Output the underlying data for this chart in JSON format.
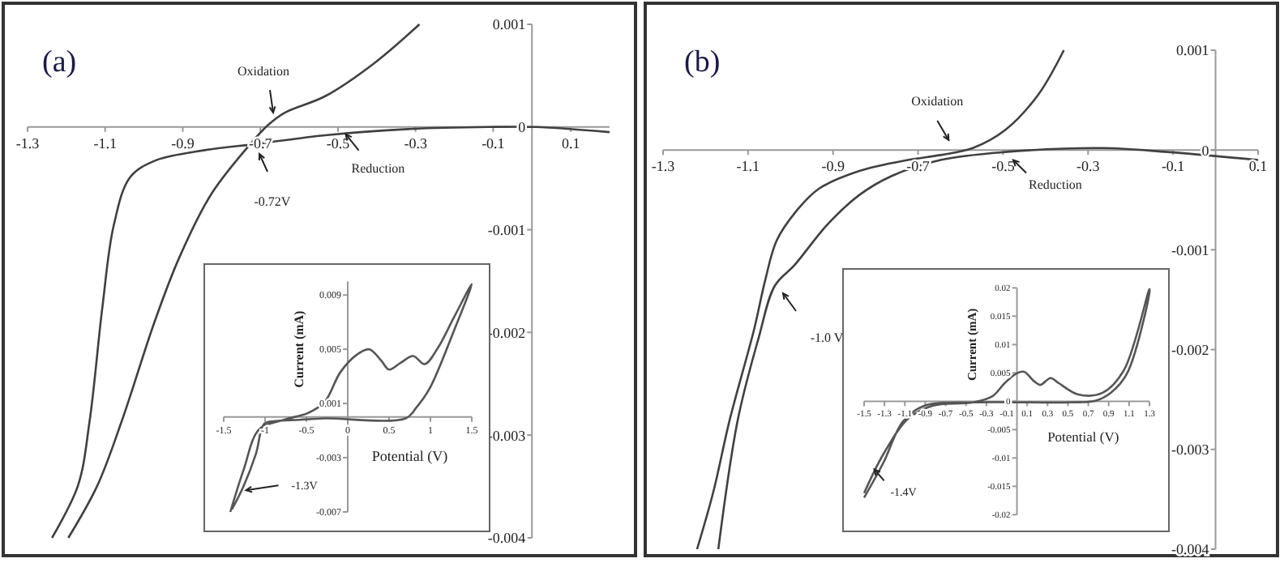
{
  "chart_data": [
    {
      "type": "line",
      "title": "(a)",
      "xlim": [
        -1.3,
        0.2
      ],
      "ylim": [
        -0.004,
        0.001
      ],
      "xticks": [
        -1.3,
        -1.1,
        -0.9,
        -0.7,
        -0.5,
        -0.3,
        -0.1,
        0.1
      ],
      "yticks": [
        -0.004,
        -0.003,
        -0.002,
        -0.001,
        0,
        0.001
      ],
      "series": [
        {
          "color": "#404040",
          "x": [
            -1.195,
            -1.12,
            -1.057,
            -0.973,
            -0.91,
            -0.826,
            -0.72,
            -0.68,
            -0.637,
            -0.533,
            -0.407,
            -0.29
          ],
          "values": [
            -0.004,
            -0.00349,
            -0.00286,
            -0.0019,
            -0.00128,
            -0.00065,
            -0.00014,
            2e-05,
            0.00014,
            0.0003,
            0.00062,
            0.001
          ]
        },
        {
          "color": "#404040",
          "x": [
            0.2,
            0.009,
            -0.113,
            -0.32,
            -0.533,
            -0.7,
            -0.868,
            -0.973,
            -1.036,
            -1.078,
            -1.107,
            -1.14,
            -1.17,
            -1.237
          ],
          "values": [
            -5e-05,
            0,
            0,
            -2e-05,
            -8e-05,
            -0.00016,
            -0.00024,
            -0.00033,
            -0.00049,
            -0.00096,
            -0.00175,
            -0.00286,
            -0.00349,
            -0.004
          ]
        }
      ],
      "annotations": [
        {
          "text": "Oxidation",
          "x": -0.667,
          "y": 0.00014
        },
        "-0.72V",
        {
          "text": "Reduction",
          "x": -0.48,
          "y": -7e-05
        }
      ]
    },
    {
      "type": "line",
      "xlabel": "Potential (V)",
      "ylabel": "Current (mA)",
      "xlim": [
        -1.5,
        1.5
      ],
      "ylim": [
        -0.007,
        0.01
      ],
      "xticks": [
        -1.5,
        -1,
        -0.5,
        0,
        0.5,
        1,
        1.5
      ],
      "yticks": [
        -0.007,
        -0.003,
        0.001,
        0.005,
        0.009
      ],
      "series": [
        {
          "color": "#555555",
          "x": [
            -1.4,
            -1.26,
            -1.11,
            -1.01,
            -0.87,
            -0.58,
            -0.28,
            0.7,
            0.83,
            0.99,
            1.28,
            1.5,
            1.28,
            1.09,
            0.93,
            0.79,
            0.64,
            0.5,
            0.4,
            0.26,
            0.11,
            -0.09,
            -0.28,
            -0.48,
            -0.77,
            -1.07,
            -1.26,
            -1.42
          ],
          "values": [
            -0.0068,
            -0.0051,
            -0.0027,
            -0.0005,
            -0.0003,
            -0.0002,
            -0.0001,
            -0.0001,
            0.0007,
            0.0021,
            0.0063,
            0.0098,
            0.0073,
            0.0051,
            0.0039,
            0.0045,
            0.004,
            0.0035,
            0.0042,
            0.005,
            0.0046,
            0.0033,
            0.0011,
            0.0003,
            -0.0002,
            -0.0009,
            -0.0039,
            -0.007
          ]
        }
      ],
      "annotations": [
        {
          "text": "-1.3V",
          "x": -1.23,
          "y": -0.0054
        }
      ]
    },
    {
      "type": "line",
      "title": "(b)",
      "xlim": [
        -1.3,
        0.1
      ],
      "ylim": [
        -0.004,
        0.001
      ],
      "xticks": [
        -1.3,
        -1.1,
        -0.9,
        -0.7,
        -0.5,
        -0.3,
        -0.1,
        0.1
      ],
      "yticks": [
        -0.004,
        -0.003,
        -0.002,
        -0.001,
        0,
        0.001
      ],
      "series": [
        {
          "color": "#404040",
          "x": [
            -1.22,
            -1.182,
            -1.143,
            -1.086,
            -1.06,
            -1.033,
            -0.99,
            -0.934,
            -0.838,
            -0.724,
            -0.647,
            -0.571,
            -0.495,
            -0.418,
            -0.357
          ],
          "values": [
            -0.004,
            -0.00343,
            -0.0027,
            -0.0018,
            -0.00131,
            -0.00091,
            -0.00063,
            -0.00039,
            -0.00021,
            -0.0001,
            -5e-05,
            2e-05,
            0.0002,
            0.00055,
            0.001
          ]
        },
        {
          "color": "#404040",
          "x": [
            0.1,
            -0.113,
            -0.266,
            -0.495,
            -0.647,
            -0.762,
            -0.838,
            -0.914,
            -0.99,
            -1.037,
            -1.075,
            -1.124,
            -1.17
          ],
          "values": [
            -0.0001,
            -2e-05,
            2e-05,
            -2e-05,
            -0.0001,
            -0.00026,
            -0.00045,
            -0.00075,
            -0.00115,
            -0.00136,
            -0.00188,
            -0.0027,
            -0.004
          ]
        }
      ],
      "annotations": [
        {
          "text": "Oxidation",
          "x": -0.628,
          "y": 0.0001
        },
        {
          "text": "Reduction",
          "x": -0.476,
          "y": -0.0001
        },
        "-1.0 V"
      ]
    },
    {
      "type": "line",
      "xlabel": "Potential (V)",
      "ylabel": "Current (mA)",
      "xlim": [
        -1.5,
        1.3
      ],
      "ylim": [
        -0.02,
        0.02
      ],
      "xticks": [
        -1.5,
        -1.3,
        -1.1,
        -0.9,
        -0.7,
        -0.5,
        -0.3,
        -0.1,
        0.1,
        0.3,
        0.5,
        0.7,
        0.9,
        1.1,
        1.3
      ],
      "yticks": [
        -0.02,
        -0.015,
        -0.01,
        -0.005,
        0,
        0.005,
        0.01,
        0.015,
        0.02
      ],
      "series": [
        {
          "color": "#555555",
          "x": [
            -1.5,
            -1.31,
            -1.12,
            -0.91,
            -0.43,
            0.52,
            0.77,
            0.92,
            1.08,
            1.3,
            1.3,
            1.05,
            0.84,
            0.6,
            0.41,
            0.33,
            0.23,
            0.17,
            0.07,
            -0.005,
            -0.12,
            -0.24,
            -0.43,
            -0.83,
            -1.07,
            -1.31,
            -1.5
          ],
          "values": [
            -0.017,
            -0.0108,
            -0.0036,
            -0.0008,
            -0.0002,
            -0.0002,
            0.0001,
            0.0015,
            0.0049,
            0.0192,
            0.0198,
            0.0055,
            0.0015,
            0.0012,
            0.0032,
            0.0041,
            0.0029,
            0.0035,
            0.0052,
            0.0049,
            0.0032,
            0.0009,
            -0.0002,
            -0.0008,
            -0.0031,
            -0.0093,
            -0.0162
          ]
        }
      ],
      "annotations": [
        {
          "text": "-1.4V",
          "x": -1.4,
          "y": -0.012
        }
      ]
    }
  ]
}
